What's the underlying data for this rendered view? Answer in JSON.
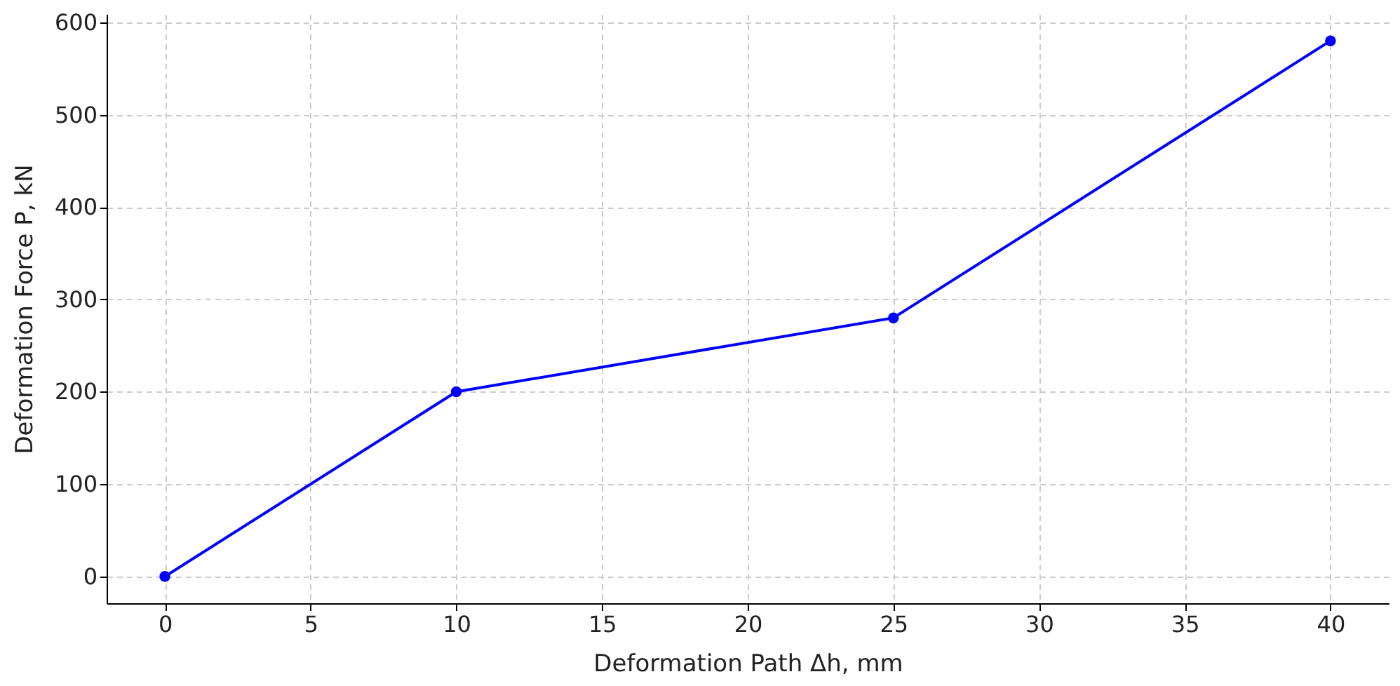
{
  "chart_data": {
    "type": "line",
    "xlabel": "Deformation Path Δh, mm",
    "ylabel": "Deformation Force P, kN",
    "x": [
      0,
      10,
      25,
      40
    ],
    "series": [
      {
        "color": "#0000ff",
        "values": [
          0,
          200,
          280,
          580
        ]
      }
    ],
    "xlim": [
      -2,
      42
    ],
    "xticks": [
      0,
      5,
      10,
      15,
      20,
      25,
      30,
      35,
      40
    ],
    "ylim": [
      -29,
      609
    ],
    "yticks": [
      0,
      100,
      200,
      300,
      400,
      500,
      600
    ],
    "grid": true,
    "marker": "circle",
    "line_style": "solid"
  }
}
